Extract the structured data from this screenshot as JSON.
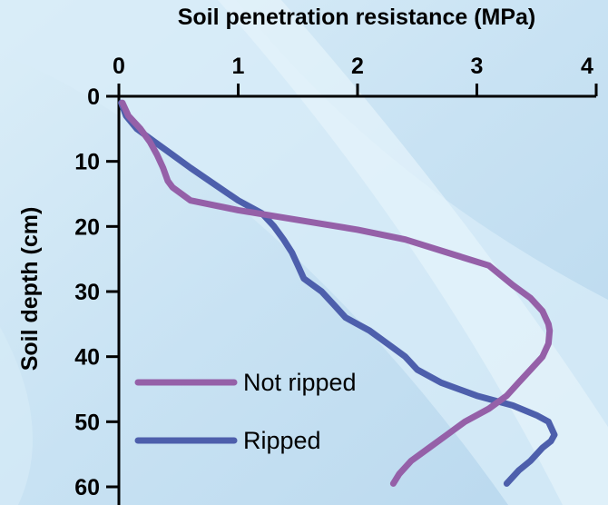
{
  "chart_data": {
    "type": "line",
    "xlabel": "Soil penetration resistance (MPa)",
    "ylabel": "Soil depth (cm)",
    "xlim": [
      0,
      4
    ],
    "ylim": [
      0,
      60
    ],
    "x_ticks": [
      0,
      1,
      2,
      3,
      4
    ],
    "y_ticks": [
      0,
      10,
      20,
      30,
      40,
      50,
      60
    ],
    "x_axis_position": "top",
    "y_axis_inverted": true,
    "grid": false,
    "legend_position": "bottom-left",
    "series": [
      {
        "name": "Not ripped",
        "color": "#9560a8",
        "points": [
          [
            0.03,
            1
          ],
          [
            0.08,
            3
          ],
          [
            0.18,
            5
          ],
          [
            0.26,
            7
          ],
          [
            0.32,
            9
          ],
          [
            0.37,
            11
          ],
          [
            0.41,
            13
          ],
          [
            0.45,
            14
          ],
          [
            0.6,
            16
          ],
          [
            1.0,
            17.5
          ],
          [
            1.5,
            19
          ],
          [
            2.0,
            20.5
          ],
          [
            2.4,
            22
          ],
          [
            2.75,
            24
          ],
          [
            3.1,
            26
          ],
          [
            3.3,
            29
          ],
          [
            3.45,
            31
          ],
          [
            3.55,
            33
          ],
          [
            3.6,
            35
          ],
          [
            3.61,
            36
          ],
          [
            3.6,
            38
          ],
          [
            3.55,
            40
          ],
          [
            3.45,
            42
          ],
          [
            3.35,
            44
          ],
          [
            3.25,
            46
          ],
          [
            3.1,
            48
          ],
          [
            2.9,
            50
          ],
          [
            2.75,
            52
          ],
          [
            2.6,
            54
          ],
          [
            2.45,
            56
          ],
          [
            2.35,
            58
          ],
          [
            2.3,
            59.5
          ]
        ]
      },
      {
        "name": "Ripped",
        "color": "#4d5fac",
        "points": [
          [
            0.02,
            1
          ],
          [
            0.06,
            3
          ],
          [
            0.15,
            5
          ],
          [
            0.3,
            7
          ],
          [
            0.45,
            9
          ],
          [
            0.6,
            11
          ],
          [
            0.8,
            13.5
          ],
          [
            1.0,
            16
          ],
          [
            1.2,
            18
          ],
          [
            1.3,
            20
          ],
          [
            1.38,
            22
          ],
          [
            1.45,
            24
          ],
          [
            1.5,
            26
          ],
          [
            1.55,
            28
          ],
          [
            1.7,
            30
          ],
          [
            1.8,
            32
          ],
          [
            1.9,
            34
          ],
          [
            2.1,
            36
          ],
          [
            2.25,
            38
          ],
          [
            2.4,
            40
          ],
          [
            2.5,
            42
          ],
          [
            2.7,
            44
          ],
          [
            3.0,
            46
          ],
          [
            3.3,
            47.5
          ],
          [
            3.5,
            49
          ],
          [
            3.6,
            50
          ],
          [
            3.65,
            52
          ],
          [
            3.62,
            53
          ],
          [
            3.55,
            54
          ],
          [
            3.45,
            56
          ],
          [
            3.35,
            57.5
          ],
          [
            3.25,
            59.5
          ]
        ]
      }
    ]
  }
}
